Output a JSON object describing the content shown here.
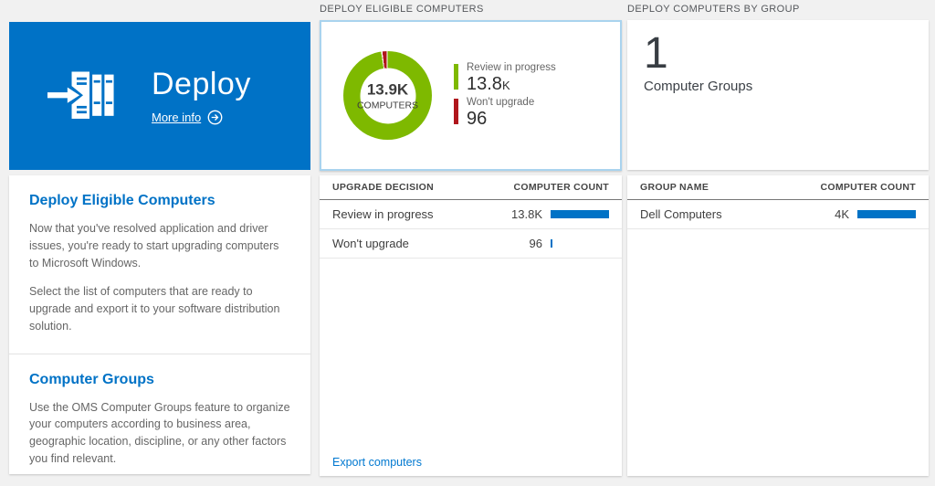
{
  "colors": {
    "accent_blue": "#0072c6",
    "donut_green": "#7eb900",
    "donut_red": "#b0161c",
    "selected_border": "#a9d3ee"
  },
  "tile": {
    "title": "Deploy",
    "more_info_label": "More info"
  },
  "left_panel": {
    "sections": [
      {
        "heading": "Deploy Eligible Computers",
        "paragraphs": [
          "Now that you've resolved application and driver issues, you're ready to start upgrading computers to Microsoft Windows.",
          "Select the list of computers that are ready to upgrade and export it to your software distribution solution."
        ]
      },
      {
        "heading": "Computer Groups",
        "paragraphs": [
          "Use the OMS Computer Groups feature to organize your computers according to business area, geographic location, discipline, or any other factors you find relevant."
        ]
      }
    ]
  },
  "eligible": {
    "header": "DEPLOY ELIGIBLE COMPUTERS",
    "donut": {
      "center_value": "13.9K",
      "center_label": "COMPUTERS",
      "segments": [
        {
          "label": "Review in progress",
          "value": 13800,
          "color": "#7eb900"
        },
        {
          "label": "Won't upgrade",
          "value": 96,
          "color": "#b0161c"
        }
      ]
    },
    "legend": [
      {
        "label": "Review in progress",
        "value": "13.8",
        "suffix": "K"
      },
      {
        "label": "Won't upgrade",
        "value": "96",
        "suffix": ""
      }
    ],
    "table": {
      "col_label": "UPGRADE DECISION",
      "col_count": "COMPUTER COUNT",
      "rows": [
        {
          "label": "Review in progress",
          "count": "13.8K",
          "bar_pct": 100
        },
        {
          "label": "Won't upgrade",
          "count": "96",
          "bar_pct": 3
        }
      ]
    },
    "export_link": "Export computers"
  },
  "groups": {
    "header": "DEPLOY COMPUTERS BY GROUP",
    "count": "1",
    "count_label": "Computer Groups",
    "table": {
      "col_label": "GROUP NAME",
      "col_count": "COMPUTER COUNT",
      "rows": [
        {
          "label": "Dell Computers",
          "count": "4K",
          "bar_pct": 100
        }
      ]
    }
  }
}
